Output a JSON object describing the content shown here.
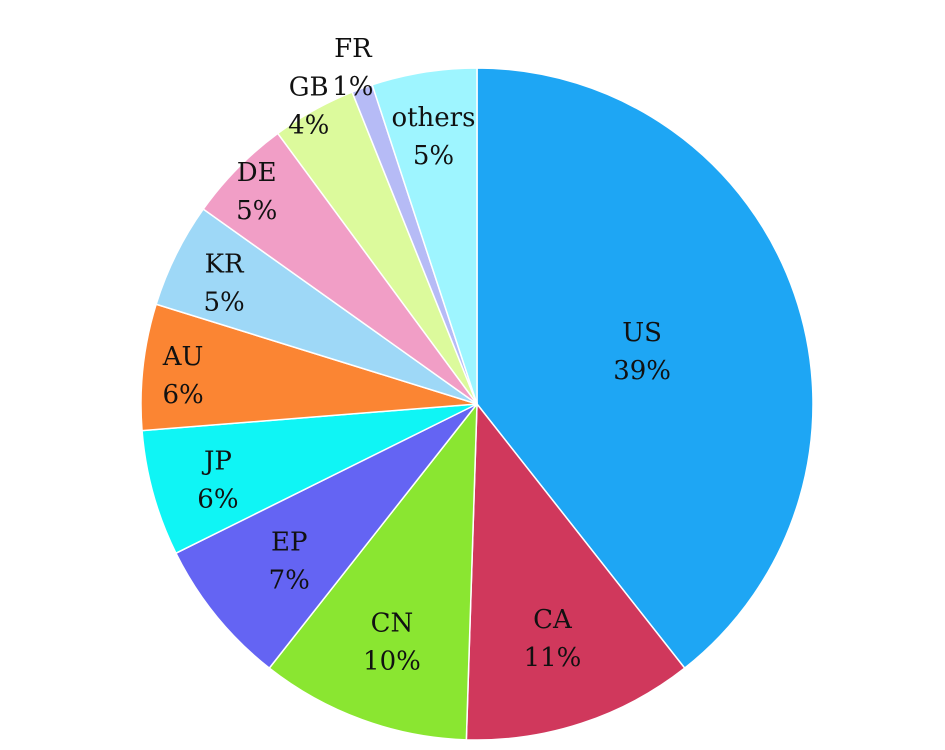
{
  "chart_data": {
    "type": "pie",
    "title": "",
    "start": "12 o'clock",
    "direction": "clockwise",
    "slices": [
      {
        "label": "US",
        "value": 39,
        "value_label": "39%",
        "color": "#1ea6f4"
      },
      {
        "label": "CA",
        "value": 11,
        "value_label": "11%",
        "color": "#d0385c"
      },
      {
        "label": "CN",
        "value": 10,
        "value_label": "10%",
        "color": "#8ae631"
      },
      {
        "label": "EP",
        "value": 7,
        "value_label": "7%",
        "color": "#6464f3"
      },
      {
        "label": "JP",
        "value": 6,
        "value_label": "6%",
        "color": "#0ff5f5"
      },
      {
        "label": "AU",
        "value": 6,
        "value_label": "6%",
        "color": "#fb8533"
      },
      {
        "label": "KR",
        "value": 5,
        "value_label": "5%",
        "color": "#9ed8f7"
      },
      {
        "label": "DE",
        "value": 5,
        "value_label": "5%",
        "color": "#f19ec6"
      },
      {
        "label": "GB",
        "value": 4,
        "value_label": "4%",
        "color": "#dcfa9c"
      },
      {
        "label": "FR",
        "value": 1,
        "value_label": "1%",
        "color": "#b6bbf6"
      },
      {
        "label": "others",
        "value": 5,
        "value_label": "5%",
        "color": "#9ef5ff"
      }
    ]
  }
}
